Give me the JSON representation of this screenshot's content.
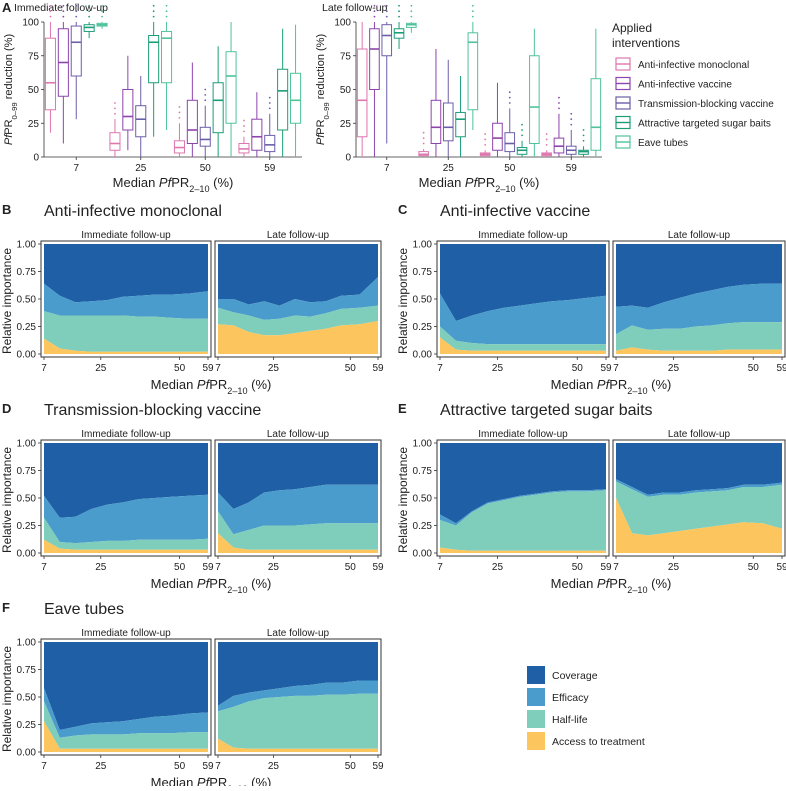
{
  "colors": {
    "monoclonal": "#de77ae",
    "aivaccine": "#8e44ad",
    "tbv": "#6b5fa8",
    "atsb": "#1b9e77",
    "eave": "#4fc39a",
    "coverage": "#1f5fa6",
    "efficacy": "#4a9ccc",
    "halflife": "#7fcdbb",
    "access": "#fdc55e"
  },
  "chart_data": {
    "panelA": {
      "type": "box",
      "label": "A",
      "ylabel_parts": [
        "Pf",
        "PR",
        "0–99",
        " reduction (%)"
      ],
      "xlabel_parts": [
        "Median ",
        "Pf",
        "PR",
        "2–10",
        " (%)"
      ],
      "categories": [
        "7",
        "25",
        "50",
        "59"
      ],
      "yticks": [
        "0",
        "25",
        "50",
        "75",
        "100"
      ],
      "ylim": [
        0,
        100
      ],
      "legend_title": [
        "Applied",
        "interventions"
      ],
      "legend": [
        "Anti-infective monoclonal",
        "Anti-infective vaccine",
        "Transmission-blocking vaccine",
        "Attractive targeted sugar baits",
        "Eave tubes"
      ],
      "facets": [
        {
          "title": "Immediate follow-up",
          "boxes": [
            [
              [
                18,
                35,
                55,
                88,
                100
              ],
              [
                10,
                45,
                70,
                95,
                100
              ],
              [
                28,
                60,
                85,
                97,
                100
              ],
              [
                88,
                93,
                96,
                98,
                100
              ],
              [
                95,
                97,
                98,
                99,
                100
              ]
            ],
            [
              [
                0,
                5,
                10,
                18,
                28
              ],
              [
                5,
                20,
                30,
                50,
                75
              ],
              [
                0,
                15,
                28,
                38,
                60
              ],
              [
                15,
                55,
                85,
                90,
                100
              ],
              [
                20,
                55,
                88,
                93,
                100
              ]
            ],
            [
              [
                0,
                3,
                7,
                12,
                25
              ],
              [
                0,
                10,
                20,
                42,
                70
              ],
              [
                0,
                8,
                13,
                22,
                38
              ],
              [
                0,
                18,
                42,
                55,
                82
              ],
              [
                0,
                25,
                60,
                78,
                100
              ]
            ],
            [
              [
                0,
                3,
                6,
                10,
                15
              ],
              [
                0,
                5,
                15,
                28,
                48
              ],
              [
                0,
                4,
                9,
                16,
                32
              ],
              [
                0,
                20,
                49,
                65,
                95
              ],
              [
                0,
                25,
                42,
                62,
                98
              ]
            ]
          ]
        },
        {
          "title": "Late follow-up",
          "boxes": [
            [
              [
                0,
                15,
                42,
                80,
                100
              ],
              [
                0,
                50,
                80,
                95,
                100
              ],
              [
                10,
                75,
                90,
                98,
                100
              ],
              [
                80,
                88,
                92,
                95,
                100
              ],
              [
                92,
                96,
                98,
                99,
                100
              ]
            ],
            [
              [
                0,
                1,
                2,
                4,
                6
              ],
              [
                0,
                10,
                22,
                42,
                80
              ],
              [
                0,
                12,
                22,
                40,
                72
              ],
              [
                0,
                15,
                28,
                33,
                60
              ],
              [
                20,
                35,
                85,
                92,
                100
              ]
            ],
            [
              [
                0,
                1,
                2,
                3,
                5
              ],
              [
                0,
                5,
                14,
                25,
                55
              ],
              [
                0,
                4,
                10,
                18,
                36
              ],
              [
                0,
                2,
                5,
                7,
                12
              ],
              [
                0,
                10,
                37,
                75,
                95
              ]
            ],
            [
              [
                0,
                1,
                2,
                3,
                5
              ],
              [
                0,
                3,
                8,
                14,
                32
              ],
              [
                0,
                2,
                5,
                8,
                20
              ],
              [
                0,
                2,
                4,
                5,
                8
              ],
              [
                0,
                5,
                22,
                58,
                95
              ]
            ]
          ]
        }
      ]
    },
    "importance_panels": [
      {
        "label": "B",
        "title": "Anti-infective monoclonal",
        "facets": [
          {
            "title": "Immediate follow-up",
            "access": [
              0.14,
              0.05,
              0.03,
              0.02,
              0.02,
              0.02,
              0.02,
              0.02,
              0.02,
              0.02,
              0.02
            ],
            "halflife": [
              0.25,
              0.3,
              0.32,
              0.33,
              0.33,
              0.33,
              0.32,
              0.32,
              0.31,
              0.3,
              0.3
            ],
            "efficacy": [
              0.25,
              0.18,
              0.12,
              0.13,
              0.14,
              0.17,
              0.19,
              0.2,
              0.21,
              0.23,
              0.25
            ]
          },
          {
            "title": "Late follow-up",
            "access": [
              0.27,
              0.26,
              0.2,
              0.17,
              0.17,
              0.19,
              0.21,
              0.23,
              0.26,
              0.27,
              0.3
            ],
            "halflife": [
              0.15,
              0.12,
              0.15,
              0.14,
              0.15,
              0.16,
              0.13,
              0.14,
              0.15,
              0.15,
              0.14
            ],
            "efficacy": [
              0.08,
              0.12,
              0.1,
              0.17,
              0.12,
              0.15,
              0.13,
              0.11,
              0.12,
              0.12,
              0.26
            ]
          }
        ]
      },
      {
        "label": "C",
        "title": "Anti-infective vaccine",
        "facets": [
          {
            "title": "Immediate follow-up",
            "access": [
              0.15,
              0.04,
              0.03,
              0.03,
              0.03,
              0.03,
              0.03,
              0.03,
              0.03,
              0.03,
              0.03
            ],
            "halflife": [
              0.1,
              0.08,
              0.07,
              0.06,
              0.06,
              0.06,
              0.06,
              0.06,
              0.06,
              0.06,
              0.06
            ],
            "efficacy": [
              0.3,
              0.18,
              0.25,
              0.3,
              0.33,
              0.35,
              0.37,
              0.39,
              0.4,
              0.42,
              0.44
            ]
          },
          {
            "title": "Late follow-up",
            "access": [
              0.03,
              0.06,
              0.04,
              0.03,
              0.03,
              0.03,
              0.03,
              0.04,
              0.04,
              0.04,
              0.04
            ],
            "halflife": [
              0.15,
              0.2,
              0.18,
              0.2,
              0.2,
              0.22,
              0.23,
              0.24,
              0.25,
              0.25,
              0.25
            ],
            "efficacy": [
              0.25,
              0.18,
              0.2,
              0.24,
              0.28,
              0.3,
              0.32,
              0.33,
              0.34,
              0.35,
              0.35
            ]
          }
        ]
      },
      {
        "label": "D",
        "title": "Transmission-blocking vaccine",
        "facets": [
          {
            "title": "Immediate follow-up",
            "access": [
              0.12,
              0.04,
              0.03,
              0.03,
              0.03,
              0.03,
              0.03,
              0.03,
              0.03,
              0.03,
              0.03
            ],
            "halflife": [
              0.2,
              0.06,
              0.06,
              0.07,
              0.08,
              0.08,
              0.09,
              0.09,
              0.09,
              0.09,
              0.1
            ],
            "efficacy": [
              0.2,
              0.22,
              0.24,
              0.3,
              0.33,
              0.35,
              0.37,
              0.38,
              0.39,
              0.4,
              0.4
            ]
          },
          {
            "title": "Late follow-up",
            "access": [
              0.18,
              0.05,
              0.03,
              0.03,
              0.03,
              0.03,
              0.03,
              0.03,
              0.03,
              0.03,
              0.03
            ],
            "halflife": [
              0.2,
              0.12,
              0.18,
              0.22,
              0.22,
              0.22,
              0.23,
              0.24,
              0.24,
              0.24,
              0.24
            ],
            "efficacy": [
              0.17,
              0.23,
              0.25,
              0.3,
              0.32,
              0.33,
              0.34,
              0.35,
              0.35,
              0.35,
              0.35
            ]
          }
        ]
      },
      {
        "label": "E",
        "title": "Attractive targeted sugar baits",
        "facets": [
          {
            "title": "Immediate follow-up",
            "access": [
              0.05,
              0.03,
              0.02,
              0.02,
              0.02,
              0.02,
              0.02,
              0.02,
              0.02,
              0.02,
              0.02
            ],
            "halflife": [
              0.25,
              0.22,
              0.35,
              0.43,
              0.46,
              0.49,
              0.51,
              0.53,
              0.54,
              0.54,
              0.55
            ],
            "efficacy": [
              0.05,
              0.02,
              0.01,
              0.01,
              0.01,
              0.01,
              0.01,
              0.01,
              0.01,
              0.01,
              0.01
            ]
          },
          {
            "title": "Late follow-up",
            "access": [
              0.5,
              0.18,
              0.16,
              0.18,
              0.2,
              0.22,
              0.24,
              0.26,
              0.28,
              0.27,
              0.22
            ],
            "halflife": [
              0.15,
              0.4,
              0.35,
              0.35,
              0.33,
              0.33,
              0.32,
              0.31,
              0.32,
              0.33,
              0.4
            ],
            "efficacy": [
              0.02,
              0.02,
              0.02,
              0.02,
              0.02,
              0.02,
              0.02,
              0.02,
              0.02,
              0.02,
              0.02
            ]
          }
        ]
      },
      {
        "label": "F",
        "title": "Eave tubes",
        "facets": [
          {
            "title": "Immediate follow-up",
            "access": [
              0.28,
              0.03,
              0.03,
              0.03,
              0.03,
              0.03,
              0.03,
              0.03,
              0.03,
              0.03,
              0.03
            ],
            "halflife": [
              0.18,
              0.1,
              0.12,
              0.13,
              0.13,
              0.13,
              0.14,
              0.14,
              0.14,
              0.15,
              0.15
            ],
            "efficacy": [
              0.12,
              0.07,
              0.08,
              0.1,
              0.11,
              0.12,
              0.13,
              0.15,
              0.16,
              0.17,
              0.18
            ]
          },
          {
            "title": "Late follow-up",
            "access": [
              0.12,
              0.04,
              0.03,
              0.03,
              0.03,
              0.03,
              0.03,
              0.03,
              0.03,
              0.03,
              0.03
            ],
            "halflife": [
              0.25,
              0.37,
              0.43,
              0.46,
              0.47,
              0.48,
              0.48,
              0.49,
              0.49,
              0.5,
              0.5
            ],
            "efficacy": [
              0.05,
              0.1,
              0.08,
              0.07,
              0.08,
              0.09,
              0.1,
              0.11,
              0.11,
              0.12,
              0.12
            ]
          }
        ]
      }
    ],
    "importance_axes": {
      "ylabel": "Relative importance",
      "xlabel_parts": [
        "Median ",
        "Pf",
        "PR",
        "2–10",
        " (%)"
      ],
      "yticks": [
        "0.00",
        "0.25",
        "0.50",
        "0.75",
        "1.00"
      ],
      "ylim": [
        0,
        1
      ],
      "x": [
        7,
        12,
        17,
        22,
        27,
        32,
        37,
        42,
        47,
        53,
        59
      ],
      "xticks": [
        "7",
        "25",
        "50",
        "59"
      ],
      "xlim": [
        7,
        59
      ]
    },
    "importance_legend": [
      "Coverage",
      "Efficacy",
      "Half-life",
      "Access to treatment"
    ]
  }
}
